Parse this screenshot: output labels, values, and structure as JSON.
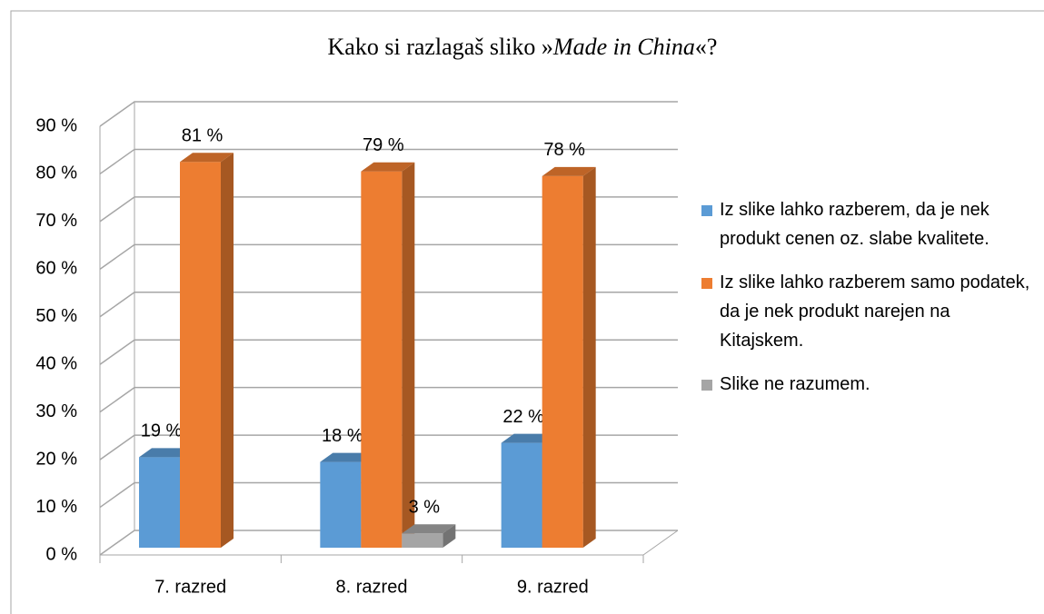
{
  "chart_data": {
    "type": "bar3d",
    "title": [
      "Kako si razlagaš sliko »",
      "Made in China",
      "«?"
    ],
    "categories": [
      "7. razred",
      "8. razred",
      "9. razred"
    ],
    "series": [
      {
        "name": "Iz slike lahko razberem, da je nek produkt cenen oz. slabe kvalitete.",
        "color": "#5b9bd5",
        "values": [
          19,
          18,
          22
        ],
        "value_labels": [
          "19 %",
          "18 %",
          "22 %"
        ]
      },
      {
        "name": "Iz slike lahko razberem samo podatek, da je nek produkt narejen na Kitajskem.",
        "color": "#ed7d31",
        "values": [
          81,
          79,
          78
        ],
        "value_labels": [
          "81 %",
          "79 %",
          "78 %"
        ]
      },
      {
        "name": "Slike ne razumem.",
        "color": "#a5a5a5",
        "values": [
          null,
          3,
          null
        ],
        "value_labels": [
          null,
          "3 %",
          null
        ]
      }
    ],
    "ylim": [
      0,
      90
    ],
    "yticks": [
      {
        "value": 0,
        "label": "0 %"
      },
      {
        "value": 10,
        "label": "10 %"
      },
      {
        "value": 20,
        "label": "20 %"
      },
      {
        "value": 30,
        "label": "30 %"
      },
      {
        "value": 40,
        "label": "40 %"
      },
      {
        "value": 50,
        "label": "50 %"
      },
      {
        "value": 60,
        "label": "60 %"
      },
      {
        "value": 70,
        "label": "70 %"
      },
      {
        "value": 80,
        "label": "80 %"
      },
      {
        "value": 90,
        "label": "90 %"
      }
    ],
    "grid": true,
    "legend": "right"
  }
}
